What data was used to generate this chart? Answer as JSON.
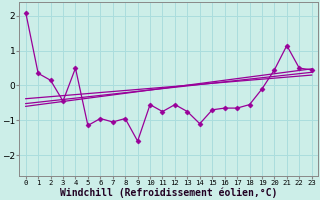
{
  "xlabel": "Windchill (Refroidissement éolien,°C)",
  "background_color": "#cceee8",
  "grid_color": "#aadddd",
  "line_color": "#990099",
  "xlim": [
    -0.5,
    23.5
  ],
  "ylim": [
    -2.6,
    2.4
  ],
  "yticks": [
    -2,
    -1,
    0,
    1,
    2
  ],
  "xtick_labels": [
    "0",
    "1",
    "2",
    "3",
    "4",
    "5",
    "6",
    "7",
    "8",
    "9",
    "10",
    "11",
    "12",
    "13",
    "14",
    "15",
    "16",
    "17",
    "18",
    "19",
    "20",
    "21",
    "22",
    "23"
  ],
  "series_x": [
    0,
    1,
    2,
    3,
    4,
    5,
    6,
    7,
    8,
    9,
    10,
    11,
    12,
    13,
    14,
    15,
    16,
    17,
    18,
    19,
    20,
    21,
    22,
    23
  ],
  "series_y": [
    2.1,
    0.35,
    0.15,
    -0.45,
    0.5,
    -1.15,
    -0.95,
    -1.05,
    -0.95,
    -1.6,
    -0.55,
    -0.75,
    -0.55,
    -0.75,
    -1.1,
    -0.7,
    -0.65,
    -0.65,
    -0.55,
    -0.1,
    0.45,
    1.15,
    0.5,
    0.45
  ],
  "trend1_y": [
    -0.6,
    0.48
  ],
  "trend2_y": [
    -0.52,
    0.38
  ],
  "trend3_y": [
    -0.38,
    0.3
  ],
  "xlabel_fontsize": 7,
  "tick_fontsize": 6.5
}
